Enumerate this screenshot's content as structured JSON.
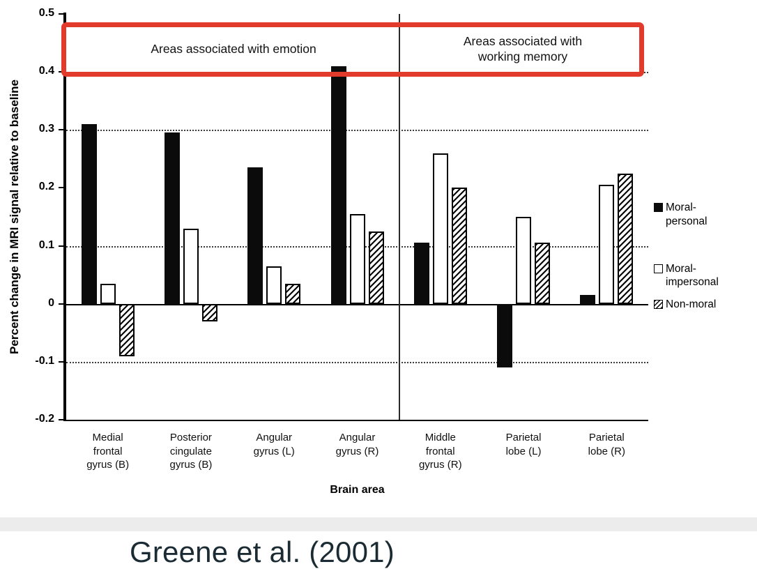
{
  "caption": "Greene et al. (2001)",
  "chart_data": {
    "type": "bar",
    "title": "",
    "ylabel": "Percent change in MRI signal relative to baseline",
    "xlabel": "Brain area",
    "ylim": [
      -0.2,
      0.5
    ],
    "yticks": [
      0.5,
      0.4,
      0.3,
      0.2,
      0.1,
      0,
      -0.1,
      -0.2
    ],
    "gridlines": [
      0.4,
      0.3,
      0.1,
      -0.1
    ],
    "grid_style": "dotted",
    "separator_after_category": 4,
    "categories": [
      "Medial\nfrontal\ngyrus (B)",
      "Posterior\ncingulate\ngyrus (B)",
      "Angular\ngyrus (L)",
      "Angular\ngyrus (R)",
      "Middle\nfrontal\ngyrus (R)",
      "Parietal\nlobe (L)",
      "Parietal\nlobe (R)"
    ],
    "series": [
      {
        "name": "Moral-\npersonal",
        "fill": "black",
        "color": "#0b0b0b",
        "values": [
          0.31,
          0.295,
          0.235,
          0.41,
          0.105,
          -0.11,
          0.015
        ]
      },
      {
        "name": "Moral-\nimpersonal",
        "fill": "white",
        "color": "#ffffff",
        "values": [
          0.035,
          0.13,
          0.065,
          0.155,
          0.26,
          0.15,
          0.205
        ]
      },
      {
        "name": "Non-moral",
        "fill": "hatched",
        "color": "diagonal-hatch",
        "values": [
          -0.09,
          -0.03,
          0.035,
          0.125,
          0.2,
          0.105,
          0.225
        ]
      }
    ],
    "annotations": {
      "emotion_label": "Areas associated with emotion",
      "wm_label": "Areas associated with\nworking memory",
      "highlight_color": "#e23b2c"
    },
    "legend_position": "right"
  }
}
